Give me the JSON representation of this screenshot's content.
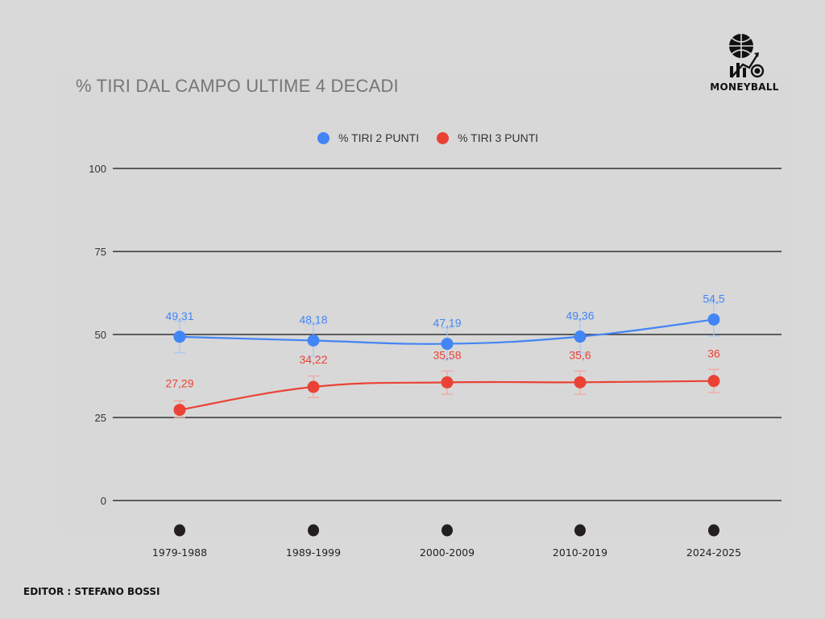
{
  "brand": {
    "name": "MONEYBALL",
    "logo_icon": "basketball-growth-icon"
  },
  "footer": {
    "editor": "EDITOR : STEFANO BOSSI"
  },
  "chart_data": {
    "type": "line",
    "title": "% TIRI DAL CAMPO ULTIME 4 DECADI",
    "xlabel": "",
    "ylabel": "",
    "ylim": [
      0,
      100
    ],
    "yticks": [
      0,
      25,
      50,
      75,
      100
    ],
    "grid": true,
    "legend_position": "top-center",
    "categories": [
      "1979-1988",
      "1989-1999",
      "2000-2009",
      "2010-2019",
      "2024-2025"
    ],
    "series": [
      {
        "name": "% TIRI 2 PUNTI",
        "color": "#4285f4",
        "values": [
          49.31,
          48.18,
          47.19,
          49.36,
          54.5
        ],
        "labels": [
          "49,31",
          "48,18",
          "47,19",
          "49,36",
          "54,5"
        ],
        "error_bars": [
          [
            44.5,
            54
          ],
          [
            43.5,
            53
          ],
          [
            42.5,
            52
          ],
          [
            44.5,
            54.5
          ],
          [
            49.5,
            59.5
          ]
        ]
      },
      {
        "name": "% TIRI 3 PUNTI",
        "color": "#ea4335",
        "values": [
          27.29,
          34.22,
          35.58,
          35.6,
          36
        ],
        "labels": [
          "27,29",
          "34,22",
          "35,58",
          "35,6",
          "36"
        ],
        "error_bars": [
          [
            25,
            30
          ],
          [
            31,
            37.5
          ],
          [
            32,
            39
          ],
          [
            32,
            39
          ],
          [
            32.5,
            39.5
          ]
        ]
      }
    ]
  }
}
